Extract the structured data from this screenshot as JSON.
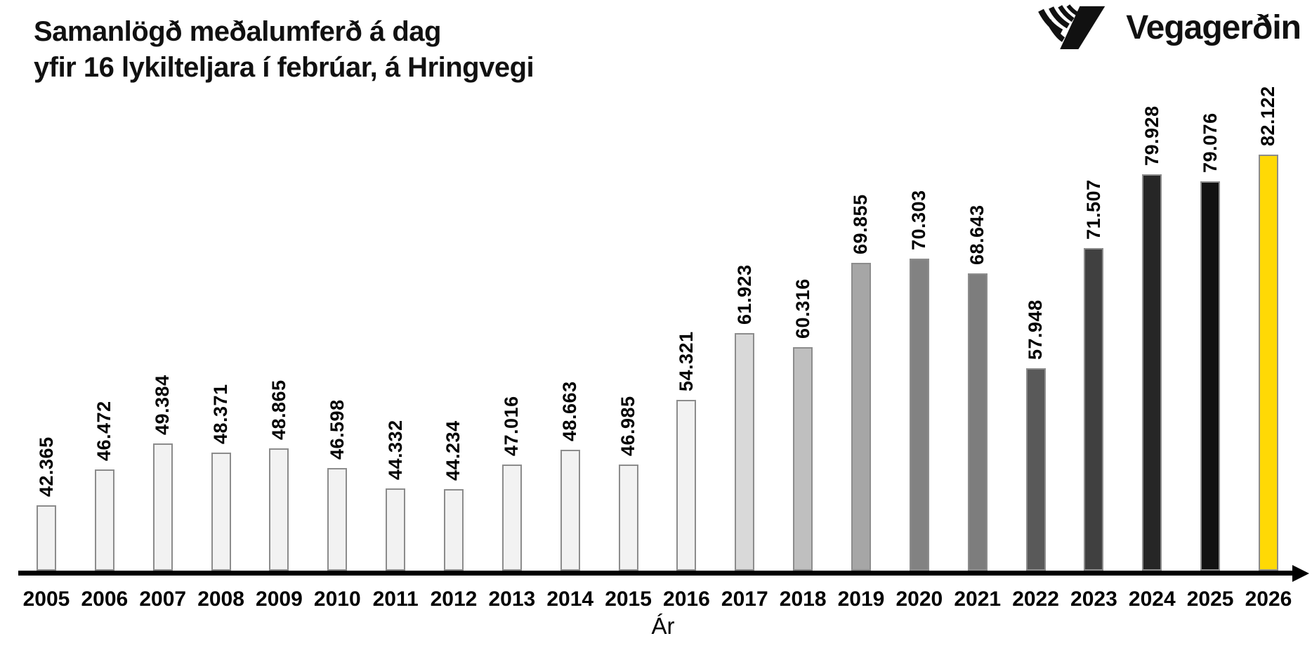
{
  "header": {
    "title_line1": "Samanlögð meðalumferð á dag",
    "title_line2": "yfir 16 lykilteljara í febrúar, á Hringvegi",
    "logo_text": "Vegagerðin"
  },
  "chart_data": {
    "type": "bar",
    "title": "Samanlögð meðalumferð á dag yfir 16 lykilteljara í febrúar, á Hringvegi",
    "xlabel": "Ár",
    "ylabel": "",
    "grid": false,
    "legend": null,
    "categories": [
      "2005",
      "2006",
      "2007",
      "2008",
      "2009",
      "2010",
      "2011",
      "2012",
      "2013",
      "2014",
      "2015",
      "2016",
      "2017",
      "2018",
      "2019",
      "2020",
      "2021",
      "2022",
      "2023",
      "2024",
      "2025",
      "2026"
    ],
    "values": [
      42365,
      46472,
      49384,
      48371,
      48865,
      46598,
      44332,
      44234,
      47016,
      48663,
      46985,
      54321,
      61923,
      60316,
      69855,
      70303,
      68643,
      57948,
      71507,
      79928,
      79076,
      82122
    ],
    "value_labels": [
      "42.365",
      "46.472",
      "49.384",
      "48.371",
      "48.865",
      "46.598",
      "44.332",
      "44.234",
      "47.016",
      "48.663",
      "46.985",
      "54.321",
      "61.923",
      "60.316",
      "69.855",
      "70.303",
      "68.643",
      "57.948",
      "71.507",
      "79.928",
      "79.076",
      "82.122"
    ],
    "ylim": [
      35000,
      82122
    ],
    "bar_colors": [
      "#F2F2F2",
      "#F2F2F2",
      "#F2F2F2",
      "#F2F2F2",
      "#F2F2F2",
      "#F2F2F2",
      "#F2F2F2",
      "#F2F2F2",
      "#F2F2F2",
      "#F2F2F2",
      "#F2F2F2",
      "#F2F2F2",
      "#D9D9D9",
      "#BFBFBF",
      "#A6A6A6",
      "#828282",
      "#7D7D7D",
      "#595959",
      "#404040",
      "#262626",
      "#121212",
      "#FFD905"
    ],
    "highlight_year": "2026",
    "highlight_color": "#FFD905",
    "bar_border_color": "#8C8C8C",
    "axis_color": "#000000"
  }
}
